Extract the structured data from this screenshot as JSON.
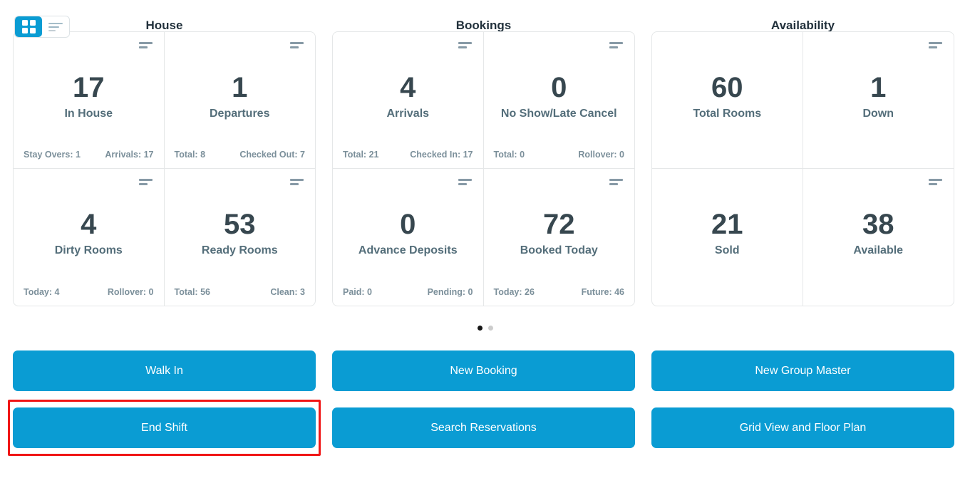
{
  "colors": {
    "accent_blue": "#0a9cd3",
    "annotation_red": "#f01616",
    "value_text": "#37474f",
    "label_text": "#546e7a",
    "stat_text": "#7b8f9a"
  },
  "view_toggle": {
    "active": "grid",
    "options": [
      "grid",
      "list"
    ]
  },
  "sections": [
    {
      "title": "House",
      "cards": [
        {
          "value": "17",
          "label": "In House",
          "stat_left": "Stay Overs: 1",
          "stat_right": "Arrivals: 17",
          "menu_icon": true
        },
        {
          "value": "1",
          "label": "Departures",
          "stat_left": "Total: 8",
          "stat_right": "Checked Out: 7",
          "menu_icon": true
        },
        {
          "value": "4",
          "label": "Dirty Rooms",
          "stat_left": "Today: 4",
          "stat_right": "Rollover: 0",
          "menu_icon": true
        },
        {
          "value": "53",
          "label": "Ready Rooms",
          "stat_left": "Total: 56",
          "stat_right": "Clean: 3",
          "menu_icon": true
        }
      ]
    },
    {
      "title": "Bookings",
      "cards": [
        {
          "value": "4",
          "label": "Arrivals",
          "stat_left": "Total: 21",
          "stat_right": "Checked In: 17",
          "menu_icon": true
        },
        {
          "value": "0",
          "label": "No Show/Late Cancel",
          "stat_left": "Total: 0",
          "stat_right": "Rollover: 0",
          "menu_icon": true
        },
        {
          "value": "0",
          "label": "Advance Deposits",
          "stat_left": "Paid: 0",
          "stat_right": "Pending: 0",
          "menu_icon": true
        },
        {
          "value": "72",
          "label": "Booked Today",
          "stat_left": "Today: 26",
          "stat_right": "Future: 46",
          "menu_icon": true
        }
      ]
    },
    {
      "title": "Availability",
      "cards": [
        {
          "value": "60",
          "label": "Total Rooms",
          "menu_icon": false
        },
        {
          "value": "1",
          "label": "Down",
          "menu_icon": true
        },
        {
          "value": "21",
          "label": "Sold",
          "menu_icon": false
        },
        {
          "value": "38",
          "label": "Available",
          "menu_icon": true
        }
      ]
    }
  ],
  "pagination": {
    "total_dots": 2,
    "active_dot": 1
  },
  "buttons": {
    "walk_in": "Walk In",
    "end_shift": "End Shift",
    "new_booking": "New Booking",
    "search_reservations": "Search Reservations",
    "new_group_master": "New Group Master",
    "grid_view_floor_plan": "Grid View and Floor Plan"
  },
  "annotation": {
    "highlighted_button": "End Shift"
  }
}
